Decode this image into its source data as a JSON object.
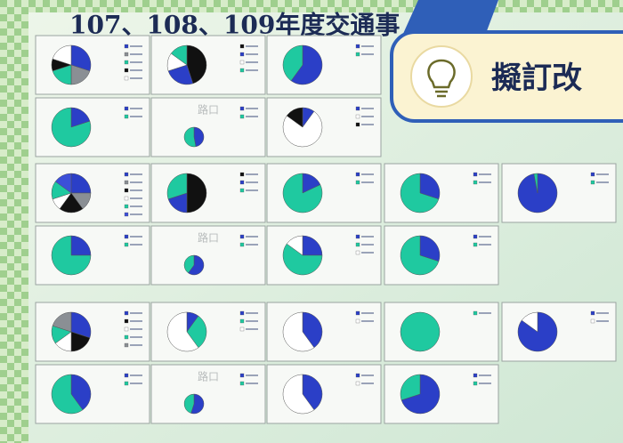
{
  "header": {
    "title": "107、108、109年度交通事",
    "callout": "擬訂改"
  },
  "rows": [
    [
      {
        "pie": [
          30,
          20,
          20,
          10,
          20
        ],
        "colors": [
          "#2b3fc7",
          "#8a8f94",
          "#1fc9a0",
          "#111111",
          "#ffffff"
        ]
      },
      {
        "pie": [
          45,
          25,
          15,
          15
        ],
        "colors": [
          "#111111",
          "#2b3fc7",
          "#ffffff",
          "#1fc9a0"
        ]
      },
      {
        "pie": [
          60,
          40
        ],
        "colors": [
          "#2b3fc7",
          "#1fc9a0"
        ]
      }
    ],
    [
      {
        "pie": [
          20,
          80
        ],
        "colors": [
          "#2b3fc7",
          "#1fc9a0"
        ]
      },
      {
        "label": "路口",
        "pie": [
          47,
          53
        ],
        "colors": [
          "#2b3fc7",
          "#1fc9a0"
        ]
      },
      {
        "pie": [
          10,
          75,
          15
        ],
        "colors": [
          "#2b3fc7",
          "#ffffff",
          "#111111"
        ]
      }
    ],
    [
      {
        "pie": [
          25,
          15,
          20,
          10,
          15,
          15
        ],
        "colors": [
          "#2b3fc7",
          "#8a8f94",
          "#111111",
          "#ffffff",
          "#1fc9a0",
          "#3c4fd8"
        ]
      },
      {
        "pie": [
          50,
          20,
          30
        ],
        "colors": [
          "#111111",
          "#2b3fc7",
          "#1fc9a0"
        ]
      },
      {
        "pie": [
          18,
          82
        ],
        "colors": [
          "#2b3fc7",
          "#1fc9a0"
        ]
      },
      {
        "pie": [
          30,
          70
        ],
        "colors": [
          "#2b3fc7",
          "#1fc9a0"
        ]
      },
      {
        "pie": [
          97,
          3
        ],
        "colors": [
          "#2b3fc7",
          "#1fc9a0"
        ]
      }
    ],
    [
      {
        "pie": [
          25,
          75
        ],
        "colors": [
          "#2b3fc7",
          "#1fc9a0"
        ]
      },
      {
        "label": "路口",
        "pie": [
          60,
          40
        ],
        "colors": [
          "#2b3fc7",
          "#1fc9a0"
        ]
      },
      {
        "pie": [
          25,
          60,
          15
        ],
        "colors": [
          "#2b3fc7",
          "#1fc9a0",
          "#ffffff"
        ]
      },
      {
        "pie": [
          30,
          70
        ],
        "colors": [
          "#2b3fc7",
          "#1fc9a0"
        ]
      }
    ],
    [
      {
        "pie": [
          30,
          20,
          15,
          15,
          20
        ],
        "colors": [
          "#2b3fc7",
          "#111111",
          "#ffffff",
          "#1fc9a0",
          "#8a8f94"
        ]
      },
      {
        "pie": [
          10,
          30,
          60
        ],
        "colors": [
          "#2b3fc7",
          "#1fc9a0",
          "#ffffff"
        ]
      },
      {
        "pie": [
          40,
          60
        ],
        "colors": [
          "#2b3fc7",
          "#ffffff"
        ]
      },
      {
        "pie": [
          100
        ],
        "colors": [
          "#1fc9a0"
        ]
      },
      {
        "pie": [
          85,
          15
        ],
        "colors": [
          "#2b3fc7",
          "#ffffff"
        ]
      }
    ],
    [
      {
        "pie": [
          40,
          60
        ],
        "colors": [
          "#2b3fc7",
          "#1fc9a0"
        ]
      },
      {
        "label": "路口",
        "pie": [
          55,
          45
        ],
        "colors": [
          "#2b3fc7",
          "#1fc9a0"
        ]
      },
      {
        "pie": [
          40,
          60
        ],
        "colors": [
          "#2b3fc7",
          "#ffffff"
        ]
      },
      {
        "pie": [
          70,
          30
        ],
        "colors": [
          "#2b3fc7",
          "#1fc9a0"
        ]
      }
    ]
  ]
}
